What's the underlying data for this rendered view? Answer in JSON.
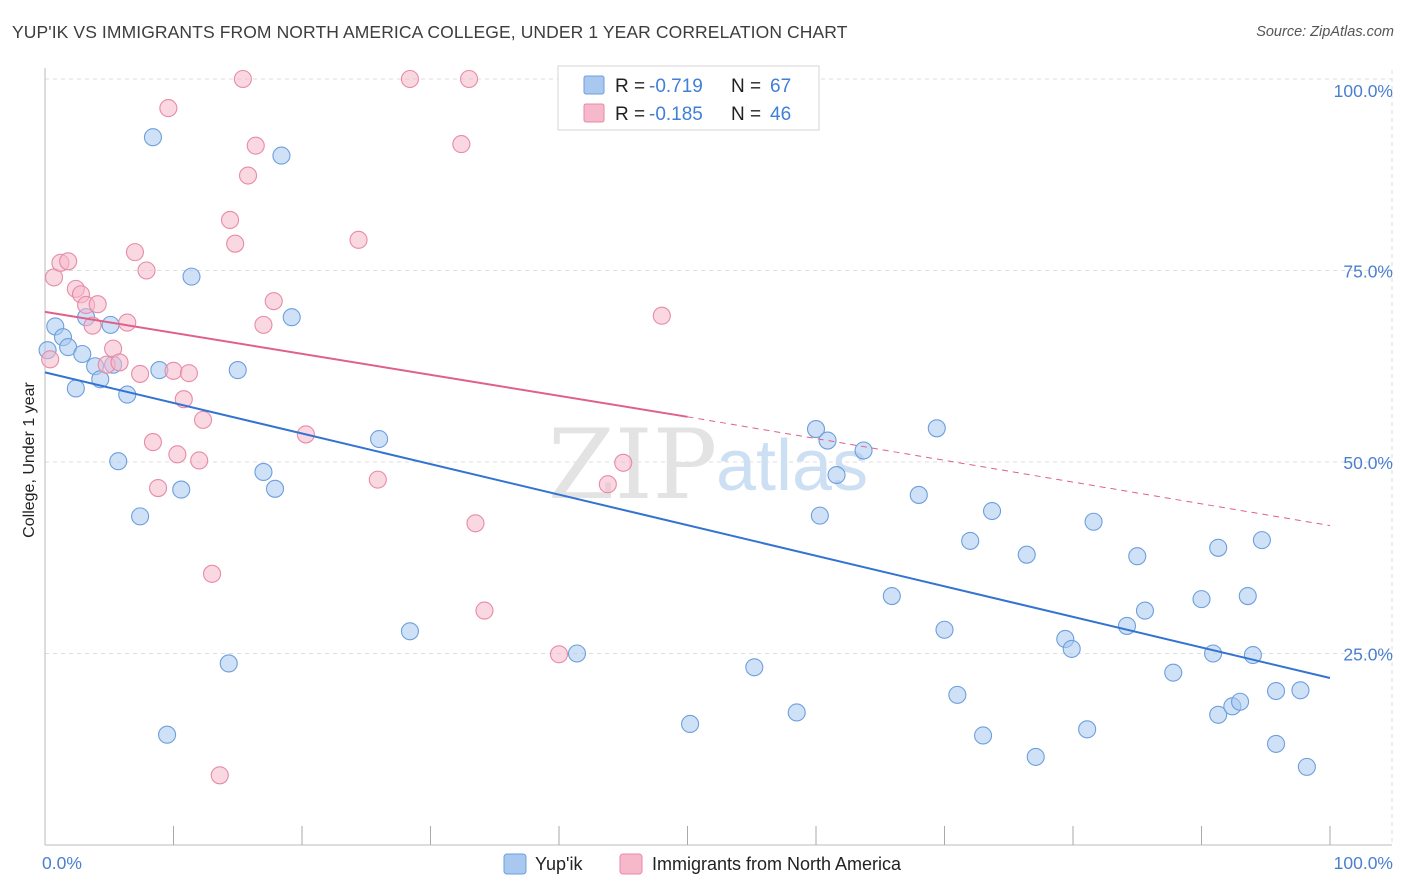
{
  "header": {
    "title": "YUP'IK VS IMMIGRANTS FROM NORTH AMERICA COLLEGE, UNDER 1 YEAR CORRELATION CHART",
    "source": "Source: ZipAtlas.com"
  },
  "watermark": {
    "zip": "ZIP",
    "atlas": "atlas"
  },
  "colors": {
    "blue_fill": "#a8c8f0",
    "blue_stroke": "#6d9fdc",
    "blue_line": "#3373d1",
    "pink_fill": "#f6b8cb",
    "pink_stroke": "#e88aa8",
    "pink_line": "#e0608a",
    "grid": "#dddddd",
    "tick_text": "#4a7fd0"
  },
  "legend": {
    "rows": [
      {
        "r_label": "R =",
        "r_value": "-0.719",
        "n_label": "N =",
        "n_value": "67"
      },
      {
        "r_label": "R =",
        "r_value": "-0.185",
        "n_label": "N =",
        "n_value": "46"
      }
    ]
  },
  "chart_data": {
    "type": "scatter",
    "title": "YUP'IK VS IMMIGRANTS FROM NORTH AMERICA COLLEGE, UNDER 1 YEAR CORRELATION CHART",
    "xlabel": "",
    "ylabel": "College, Under 1 year",
    "xlim": [
      0,
      100
    ],
    "ylim": [
      0,
      100
    ],
    "x_tick_labels": [
      "0.0%",
      "100.0%"
    ],
    "y_ticks": [
      25,
      50,
      75,
      100
    ],
    "y_tick_labels": [
      "25.0%",
      "50.0%",
      "75.0%",
      "100.0%"
    ],
    "grid": true,
    "legend_position": "top-center",
    "series": [
      {
        "name": "Yup'ik",
        "r": -0.719,
        "n": 67,
        "trend": {
          "x0": 0,
          "y0": 61.7,
          "x1": 100,
          "y1": 21.8
        },
        "points": [
          [
            0.2,
            64.6
          ],
          [
            0.8,
            67.7
          ],
          [
            1.4,
            66.3
          ],
          [
            1.8,
            65.0
          ],
          [
            2.4,
            59.6
          ],
          [
            2.9,
            64.1
          ],
          [
            3.2,
            68.9
          ],
          [
            3.9,
            62.5
          ],
          [
            4.3,
            60.8
          ],
          [
            5.1,
            67.9
          ],
          [
            5.3,
            62.7
          ],
          [
            5.7,
            50.1
          ],
          [
            6.4,
            58.8
          ],
          [
            7.4,
            42.9
          ],
          [
            8.4,
            92.4
          ],
          [
            8.9,
            62.0
          ],
          [
            9.5,
            14.4
          ],
          [
            10.6,
            46.4
          ],
          [
            11.4,
            74.2
          ],
          [
            14.3,
            23.7
          ],
          [
            15.0,
            62.0
          ],
          [
            17.0,
            48.7
          ],
          [
            17.9,
            46.5
          ],
          [
            18.4,
            90.0
          ],
          [
            19.2,
            68.9
          ],
          [
            26.0,
            53.0
          ],
          [
            28.4,
            27.9
          ],
          [
            41.4,
            25.0
          ],
          [
            50.2,
            15.8
          ],
          [
            55.2,
            23.2
          ],
          [
            58.5,
            17.3
          ],
          [
            60.0,
            54.3
          ],
          [
            60.3,
            43.0
          ],
          [
            60.9,
            52.8
          ],
          [
            61.6,
            48.3
          ],
          [
            63.7,
            51.5
          ],
          [
            65.9,
            32.5
          ],
          [
            68.0,
            45.7
          ],
          [
            69.4,
            54.4
          ],
          [
            70.0,
            28.1
          ],
          [
            71.0,
            19.6
          ],
          [
            72.0,
            39.7
          ],
          [
            73.0,
            14.3
          ],
          [
            73.7,
            43.6
          ],
          [
            76.4,
            37.9
          ],
          [
            77.1,
            11.5
          ],
          [
            79.4,
            26.9
          ],
          [
            79.9,
            25.6
          ],
          [
            81.1,
            15.1
          ],
          [
            81.6,
            42.2
          ],
          [
            85.0,
            37.7
          ],
          [
            84.2,
            28.6
          ],
          [
            85.6,
            30.6
          ],
          [
            87.8,
            22.5
          ],
          [
            90.0,
            32.1
          ],
          [
            90.9,
            25.0
          ],
          [
            91.3,
            38.8
          ],
          [
            91.3,
            17.0
          ],
          [
            92.4,
            18.1
          ],
          [
            93.0,
            18.7
          ],
          [
            93.6,
            32.5
          ],
          [
            94.0,
            24.8
          ],
          [
            94.7,
            39.8
          ],
          [
            95.8,
            20.1
          ],
          [
            95.8,
            13.2
          ],
          [
            97.7,
            20.2
          ],
          [
            98.2,
            10.2
          ]
        ]
      },
      {
        "name": "Immigrants from North America",
        "r": -0.185,
        "n": 46,
        "trend": {
          "x0": 0,
          "y0": 69.6,
          "x1": 50,
          "y1": 55.9,
          "x1_dashed": 100,
          "y1_dashed": 41.7
        },
        "points": [
          [
            0.4,
            63.4
          ],
          [
            0.7,
            74.1
          ],
          [
            1.2,
            76.0
          ],
          [
            1.8,
            76.2
          ],
          [
            2.4,
            72.6
          ],
          [
            2.8,
            71.9
          ],
          [
            3.2,
            70.5
          ],
          [
            3.7,
            67.8
          ],
          [
            4.1,
            70.6
          ],
          [
            4.8,
            62.7
          ],
          [
            5.3,
            64.8
          ],
          [
            5.8,
            63.0
          ],
          [
            6.4,
            68.2
          ],
          [
            7.0,
            77.4
          ],
          [
            7.4,
            61.5
          ],
          [
            7.9,
            75.0
          ],
          [
            8.4,
            52.6
          ],
          [
            8.8,
            46.6
          ],
          [
            9.6,
            96.2
          ],
          [
            10.0,
            61.9
          ],
          [
            10.3,
            51.0
          ],
          [
            10.8,
            58.2
          ],
          [
            11.2,
            61.6
          ],
          [
            12.0,
            50.2
          ],
          [
            12.3,
            55.5
          ],
          [
            13.0,
            35.4
          ],
          [
            13.6,
            9.1
          ],
          [
            14.4,
            81.6
          ],
          [
            14.8,
            78.5
          ],
          [
            15.4,
            100.0
          ],
          [
            15.8,
            87.4
          ],
          [
            16.4,
            91.3
          ],
          [
            17.0,
            67.9
          ],
          [
            17.8,
            71.0
          ],
          [
            20.3,
            53.6
          ],
          [
            24.4,
            79.0
          ],
          [
            25.9,
            47.7
          ],
          [
            28.4,
            100.0
          ],
          [
            32.4,
            91.5
          ],
          [
            33.0,
            100.0
          ],
          [
            33.5,
            42.0
          ],
          [
            34.2,
            30.6
          ],
          [
            40.0,
            24.9
          ],
          [
            43.8,
            47.1
          ],
          [
            45.0,
            49.9
          ],
          [
            48.0,
            69.1
          ]
        ]
      }
    ]
  }
}
